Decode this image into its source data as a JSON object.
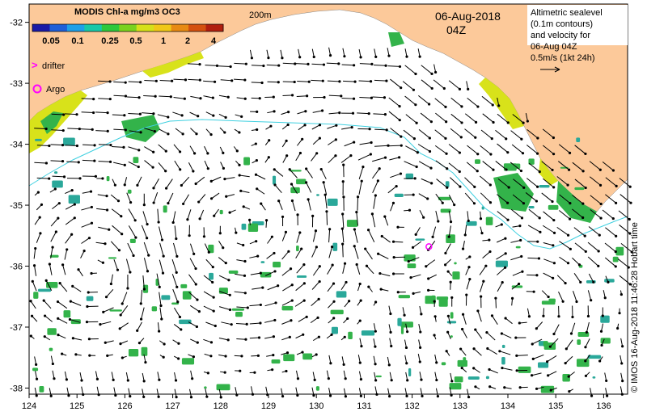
{
  "legend": {
    "title": "MODIS Chl-a mg/m3 OC3",
    "ticks": [
      "0.05",
      "0.1",
      "0.25",
      "0.5",
      "1",
      "2",
      "4"
    ],
    "colors": [
      "#1a1aa6",
      "#1f5fd8",
      "#1fa0e8",
      "#19c8a8",
      "#2ec83c",
      "#7ad21e",
      "#d6e01a",
      "#f0c818",
      "#e88a12",
      "#d4500e",
      "#b01e0e"
    ]
  },
  "symbols": {
    "drifter_glyph": ">",
    "drifter_label": "drifter",
    "argo_label": "Argo",
    "color": "#ff00ff"
  },
  "bathymetry_label": "200m",
  "date": {
    "line1": "06-Aug-2018",
    "line2": "04Z"
  },
  "info_box": {
    "lines": [
      "Altimetric sealevel",
      "(0.1m contours)",
      "and velocity for",
      "06-Aug 04Z",
      "0.5m/s (1kt 24h)"
    ]
  },
  "credit": "© IMOS 16-Aug-2018 11:46:28 Hobart time",
  "axes": {
    "x_ticks": [
      "124",
      "125",
      "126",
      "127",
      "128",
      "129",
      "130",
      "131",
      "132",
      "133",
      "134",
      "135",
      "136"
    ],
    "y_ticks": [
      "-32",
      "-33",
      "-34",
      "-35",
      "-36",
      "-37",
      "-38"
    ]
  },
  "argo_float": {
    "lon": 132.35,
    "lat": -35.68
  },
  "colors": {
    "land": "#fcc99a",
    "chl_green": "#33b34a",
    "chl_teal": "#2aa89a",
    "chl_yellow": "#d8e21a",
    "isobath": "#3fd0e0",
    "vector": "#000000"
  }
}
